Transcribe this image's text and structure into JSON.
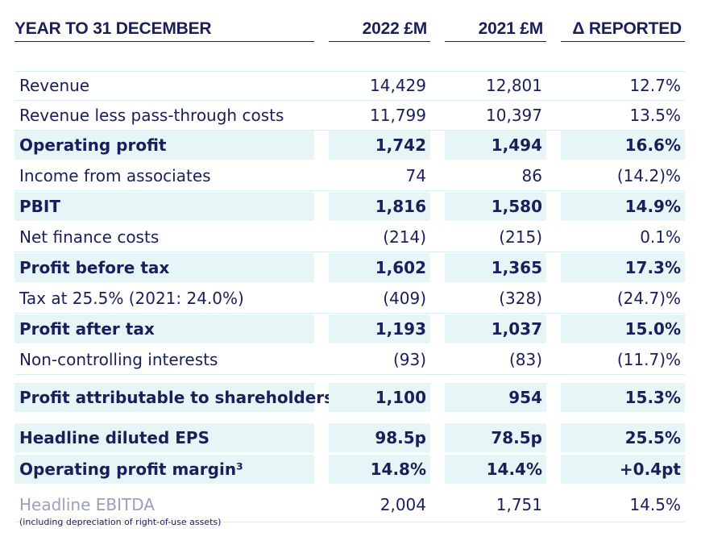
{
  "headers": {
    "label": "YEAR TO 31 DECEMBER",
    "y2022": "2022 £M",
    "y2021": "2021 £M",
    "change": "Δ REPORTED"
  },
  "rows": [
    {
      "label": "Revenue",
      "y2022": "14,429",
      "y2021": "12,801",
      "change": "12.7%",
      "bold": false
    },
    {
      "label": "Revenue less pass-through costs",
      "y2022": "11,799",
      "y2021": "10,397",
      "change": "13.5%",
      "bold": false
    },
    {
      "label": "Operating profit",
      "y2022": "1,742",
      "y2021": "1,494",
      "change": "16.6%",
      "bold": true
    },
    {
      "label": "Income from associates",
      "y2022": "74",
      "y2021": "86",
      "change": "(14.2)%",
      "bold": false
    },
    {
      "label": "PBIT",
      "y2022": "1,816",
      "y2021": "1,580",
      "change": "14.9%",
      "bold": true
    },
    {
      "label": "Net finance costs",
      "y2022": "(214)",
      "y2021": "(215)",
      "change": "0.1%",
      "bold": false
    },
    {
      "label": "Profit before tax",
      "y2022": "1,602",
      "y2021": "1,365",
      "change": "17.3%",
      "bold": true
    },
    {
      "label": "Tax at 25.5% (2021: 24.0%)",
      "y2022": "(409)",
      "y2021": "(328)",
      "change": "(24.7)%",
      "bold": false
    },
    {
      "label": "Profit after tax",
      "y2022": "1,193",
      "y2021": "1,037",
      "change": "15.0%",
      "bold": true
    },
    {
      "label": "Non-controlling interests",
      "y2022": "(93)",
      "y2021": "(83)",
      "change": "(11.7)%",
      "bold": false
    },
    {
      "label": "Profit attributable to shareholders",
      "y2022": "1,100",
      "y2021": "954",
      "change": "15.3%",
      "bold": true
    },
    {
      "label": "Headline diluted EPS",
      "y2022": "98.5p",
      "y2021": "78.5p",
      "change": "25.5%",
      "bold": true
    },
    {
      "label": "Operating profit margin³",
      "y2022": "14.8%",
      "y2021": "14.4%",
      "change": "+0.4pt",
      "bold": true
    },
    {
      "label": "Headline EBITDA",
      "y2022": "2,004",
      "y2021": "1,751",
      "change": "14.5%",
      "bold": false
    }
  ],
  "ebitda_note": "(including depreciation of right-of-use assets)",
  "colors": {
    "text": "#1a1f5a",
    "highlight": "#e6f6f7",
    "separator": "#d6eef0"
  }
}
